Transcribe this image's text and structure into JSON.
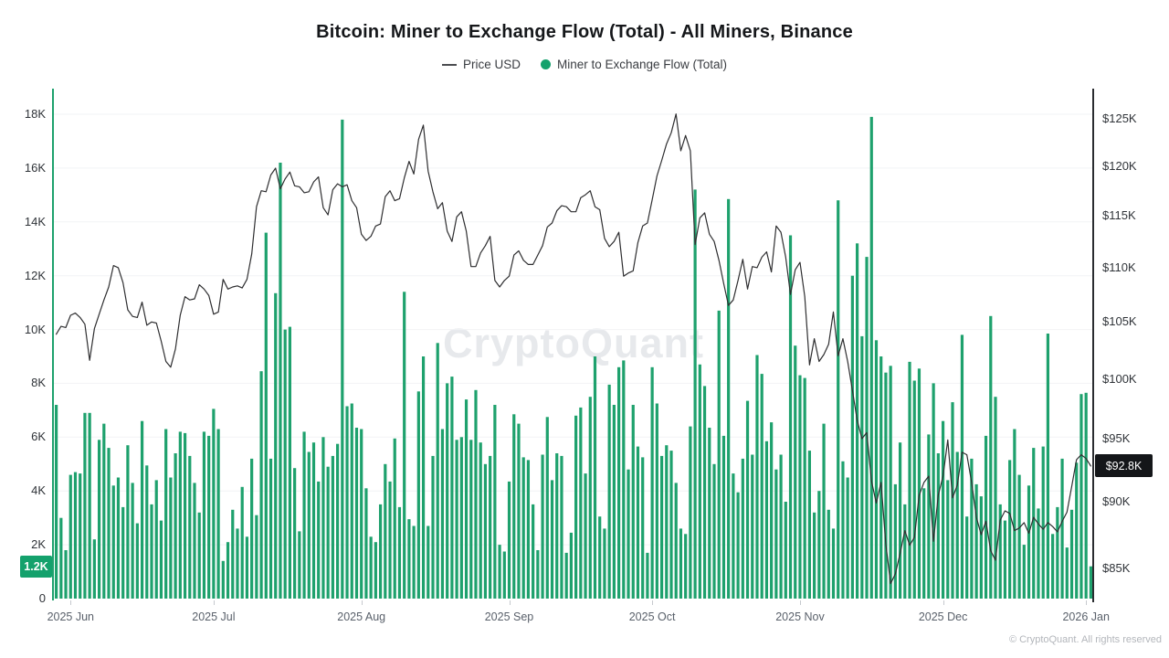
{
  "header": {
    "title": "Bitcoin: Miner to Exchange Flow (Total) - All Miners, Binance"
  },
  "watermark": {
    "text": "CryptoQuant"
  },
  "footer": {
    "copyright": "© CryptoQuant. All rights reserved"
  },
  "colors": {
    "bar": "#1EA16D",
    "price_line": "#2E2E30",
    "left_axis_line": "#1EA16D",
    "right_axis_line": "#2A2C30",
    "badge_flow_bg": "#14A16C",
    "badge_price_bg": "#141619",
    "grid": "#f2f3f5",
    "tick_mark": "#c6c9ce"
  },
  "chart_data": {
    "type": "combo-bar-line",
    "title": "Bitcoin: Miner to Exchange Flow (Total) - All Miners, Binance",
    "x_axis": {
      "ticks": [
        {
          "index": 3,
          "label": "2025 Jun"
        },
        {
          "index": 33,
          "label": "2025 Jul"
        },
        {
          "index": 64,
          "label": "2025 Aug"
        },
        {
          "index": 95,
          "label": "2025 Sep"
        },
        {
          "index": 125,
          "label": "2025 Oct"
        },
        {
          "index": 156,
          "label": "2025 Nov"
        },
        {
          "index": 186,
          "label": "2025 Dec"
        },
        {
          "index": 216,
          "label": "2026 Jan"
        }
      ]
    },
    "left_axis": {
      "unit": "thousand BTC",
      "max_k": 18,
      "tick_values": [
        0,
        2,
        4,
        6,
        8,
        10,
        12,
        14,
        16,
        18
      ],
      "tick_labels": [
        "0",
        "2K",
        "4K",
        "6K",
        "8K",
        "10K",
        "12K",
        "14K",
        "16K",
        "18K"
      ],
      "current_value": 1.2,
      "current_label": "1.2K",
      "grid": true
    },
    "right_axis": {
      "unit": "USD thousands",
      "scale": "log",
      "tick_values": [
        85,
        90,
        95,
        100,
        105,
        110,
        115,
        120,
        125
      ],
      "tick_labels": [
        "$85K",
        "$90K",
        "$95K",
        "$100K",
        "$105K",
        "$110K",
        "$115K",
        "$120K",
        "$125K"
      ],
      "current_value": 92.8,
      "current_label": "$92.8K"
    },
    "series": [
      {
        "name": "Miner to Exchange Flow (Total)",
        "type": "bar",
        "axis": "left",
        "color": "#1EA16D",
        "values_unit": "thousand BTC",
        "values": [
          7.2,
          3.0,
          1.8,
          4.6,
          4.7,
          4.65,
          6.9,
          6.9,
          2.2,
          5.9,
          6.5,
          5.6,
          4.2,
          4.5,
          3.4,
          5.7,
          4.3,
          2.8,
          6.6,
          4.95,
          3.5,
          4.4,
          2.9,
          6.3,
          4.5,
          5.4,
          6.2,
          6.15,
          5.3,
          4.3,
          3.2,
          6.2,
          6.05,
          7.05,
          6.3,
          1.4,
          2.1,
          3.3,
          2.6,
          4.15,
          2.3,
          5.2,
          3.1,
          8.45,
          13.6,
          5.2,
          11.35,
          16.2,
          10.0,
          10.1,
          4.85,
          2.5,
          6.2,
          5.45,
          5.8,
          4.35,
          6.0,
          4.9,
          5.3,
          5.75,
          17.8,
          7.15,
          7.25,
          6.35,
          6.3,
          4.1,
          2.3,
          2.1,
          3.5,
          5.0,
          4.35,
          5.95,
          3.4,
          11.4,
          2.95,
          2.7,
          7.7,
          9.0,
          2.7,
          5.3,
          9.5,
          6.3,
          8.0,
          8.25,
          5.9,
          6.0,
          7.4,
          5.9,
          7.75,
          5.8,
          5.0,
          5.3,
          7.2,
          2.0,
          1.75,
          4.35,
          6.85,
          6.5,
          5.25,
          5.15,
          3.5,
          1.8,
          5.35,
          6.75,
          4.4,
          5.4,
          5.3,
          1.7,
          2.45,
          6.8,
          7.1,
          4.65,
          7.5,
          9.0,
          3.05,
          2.6,
          7.95,
          7.2,
          8.6,
          8.85,
          4.8,
          7.2,
          5.65,
          5.25,
          1.7,
          8.6,
          7.25,
          5.3,
          5.7,
          5.5,
          4.3,
          2.6,
          2.4,
          6.4,
          15.2,
          8.7,
          7.9,
          6.35,
          5.0,
          10.7,
          6.05,
          14.85,
          4.65,
          3.95,
          5.2,
          7.35,
          5.35,
          9.05,
          8.35,
          5.85,
          6.55,
          4.8,
          5.35,
          3.6,
          13.5,
          9.4,
          8.3,
          8.2,
          5.5,
          3.2,
          4.0,
          6.5,
          3.3,
          2.6,
          14.8,
          5.1,
          4.5,
          12.0,
          13.2,
          9.75,
          12.7,
          17.9,
          9.6,
          9.0,
          8.4,
          8.65,
          4.25,
          5.8,
          3.5,
          8.8,
          8.1,
          8.55,
          4.1,
          6.1,
          8.0,
          5.4,
          6.6,
          4.4,
          7.3,
          5.45,
          9.8,
          3.05,
          5.2,
          4.25,
          3.8,
          6.05,
          10.5,
          7.5,
          3.5,
          2.9,
          5.15,
          6.3,
          4.6,
          2.0,
          4.2,
          5.6,
          3.35,
          5.65,
          9.85,
          2.4,
          3.4,
          5.2,
          1.9,
          3.3,
          5.05,
          7.6,
          7.65,
          1.2
        ]
      },
      {
        "name": "Price USD",
        "type": "line",
        "axis": "right",
        "color": "#2E2E30",
        "values_unit": "USD thousands",
        "values": [
          103.9,
          104.6,
          104.5,
          105.6,
          105.8,
          105.4,
          104.8,
          101.6,
          104.4,
          105.7,
          107.0,
          108.2,
          110.2,
          110.0,
          108.6,
          106.1,
          105.5,
          105.4,
          106.8,
          104.7,
          105.0,
          104.9,
          103.3,
          101.5,
          101.0,
          102.6,
          105.6,
          107.3,
          107.0,
          107.1,
          108.4,
          108.0,
          107.4,
          105.7,
          105.9,
          108.9,
          108.0,
          108.2,
          108.3,
          108.1,
          108.9,
          111.3,
          115.9,
          117.5,
          117.4,
          119.1,
          119.8,
          117.7,
          118.7,
          119.4,
          118.0,
          117.9,
          117.3,
          117.4,
          118.4,
          118.9,
          115.8,
          115.1,
          117.6,
          118.2,
          117.9,
          118.1,
          116.5,
          115.8,
          113.2,
          112.6,
          113.0,
          114.0,
          114.2,
          116.9,
          117.5,
          116.5,
          116.7,
          118.8,
          120.5,
          119.2,
          122.8,
          124.3,
          119.5,
          117.4,
          115.7,
          116.3,
          113.5,
          112.5,
          114.9,
          115.4,
          113.5,
          110.1,
          110.1,
          111.4,
          112.1,
          113.0,
          108.8,
          108.2,
          108.8,
          109.2,
          111.2,
          111.6,
          110.7,
          110.3,
          110.3,
          111.2,
          112.1,
          113.9,
          114.3,
          115.5,
          116.0,
          115.9,
          115.4,
          115.4,
          116.8,
          117.1,
          117.5,
          115.9,
          115.6,
          112.8,
          112.0,
          112.5,
          113.4,
          109.2,
          109.5,
          109.7,
          112.4,
          114.0,
          114.3,
          116.6,
          119.0,
          120.6,
          122.3,
          123.5,
          125.5,
          121.6,
          123.2,
          121.6,
          112.2,
          114.8,
          115.3,
          113.2,
          112.5,
          110.7,
          108.5,
          106.5,
          107.0,
          108.8,
          110.8,
          108.0,
          110.1,
          110.0,
          111.0,
          111.5,
          109.6,
          114.0,
          113.4,
          111.0,
          107.5,
          109.8,
          110.5,
          107.3,
          101.2,
          103.5,
          101.5,
          102.1,
          103.0,
          105.9,
          102.0,
          103.5,
          101.5,
          99.0,
          96.5,
          95.0,
          95.5,
          91.6,
          89.9,
          91.5,
          86.8,
          83.9,
          84.6,
          86.1,
          87.8,
          86.7,
          87.3,
          90.5,
          91.5,
          92.0,
          87.0,
          90.5,
          92.0,
          94.9,
          90.3,
          91.3,
          93.9,
          93.7,
          91.5,
          88.8,
          87.5,
          88.5,
          86.3,
          85.6,
          88.6,
          89.3,
          89.1,
          87.8,
          88.0,
          88.4,
          87.6,
          88.8,
          88.3,
          87.9,
          88.4,
          88.1,
          87.7,
          88.5,
          89.2,
          91.2,
          93.3,
          93.7,
          93.4,
          92.8
        ]
      }
    ]
  }
}
